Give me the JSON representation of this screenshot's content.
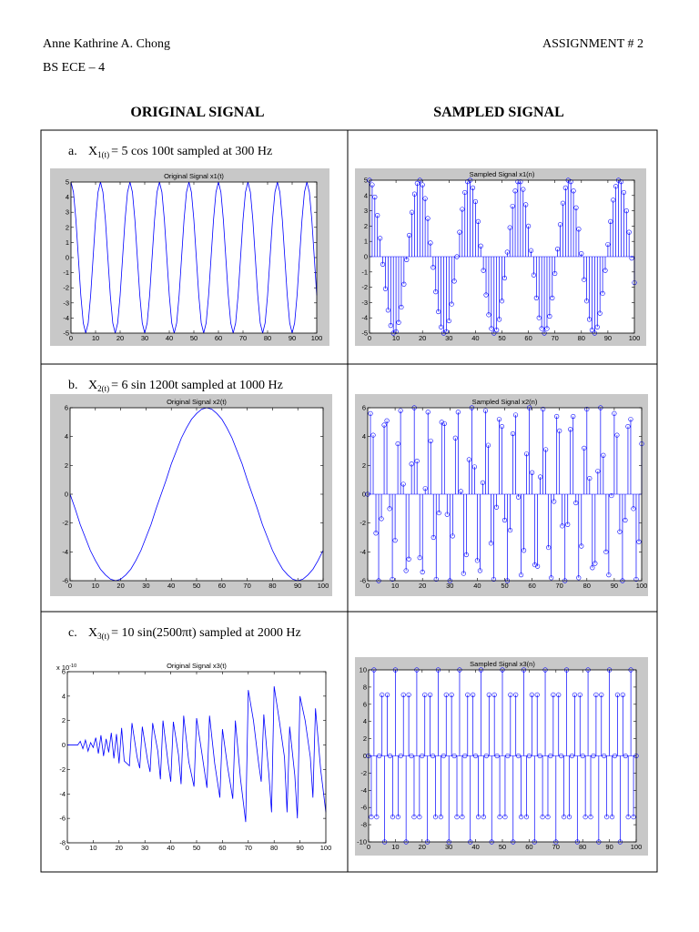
{
  "header": {
    "name": "Anne Kathrine A. Chong",
    "assignment": "ASSIGNMENT # 2",
    "course": "BS ECE – 4"
  },
  "columns": [
    "ORIGINAL SIGNAL",
    "SAMPLED SIGNAL"
  ],
  "rows": [
    {
      "label": "a.",
      "symbol": "X",
      "subscript": "1(t)",
      "text": "= 5 cos 100t sampled at 300 Hz"
    },
    {
      "label": "b.",
      "symbol": "X",
      "subscript": "2(t)",
      "text": "= 6 sin 1200t sampled at 1000 Hz"
    },
    {
      "label": "c.",
      "symbol": "X",
      "subscript": "3(t)",
      "text": "= 10 sin(2500πt) sampled at 2000 Hz"
    }
  ],
  "chart_data": [
    {
      "type": "line",
      "title": "Original Signal x1(t)",
      "color": "#0000ff",
      "background": "#c8c8c8",
      "x": [
        0,
        1,
        2,
        3,
        4,
        5,
        6,
        7,
        8,
        9,
        10,
        11,
        12,
        13,
        14,
        15,
        16,
        17,
        18,
        19,
        20,
        21,
        22,
        23,
        24,
        25,
        26,
        27,
        28,
        29,
        30,
        31,
        32,
        33,
        34,
        35,
        36,
        37,
        38,
        39,
        40,
        41,
        42,
        43,
        44,
        45,
        46,
        47,
        48,
        49,
        50,
        51,
        52,
        53,
        54,
        55,
        56,
        57,
        58,
        59,
        60,
        61,
        62,
        63,
        64,
        65,
        66,
        67,
        68,
        69,
        70,
        71,
        72,
        73,
        74,
        75,
        76,
        77,
        78,
        79,
        80,
        81,
        82,
        83,
        84,
        85,
        86,
        87,
        88,
        89,
        90,
        91,
        92,
        93,
        94,
        95,
        96,
        97,
        98,
        99,
        100
      ],
      "values": [
        5,
        4.33,
        2.5,
        0,
        -2.5,
        -4.33,
        -5,
        -4.33,
        -2.5,
        0,
        2.5,
        4.33,
        5,
        4.33,
        2.5,
        0,
        -2.5,
        -4.33,
        -5,
        -4.33,
        -2.5,
        0,
        2.5,
        4.33,
        5,
        4.33,
        2.5,
        0,
        -2.5,
        -4.33,
        -5,
        -4.33,
        -2.5,
        0,
        2.5,
        4.33,
        5,
        4.33,
        2.5,
        0,
        -2.5,
        -4.33,
        -5,
        -4.33,
        -2.5,
        0,
        2.5,
        4.33,
        5,
        4.33,
        2.5,
        0,
        -2.5,
        -4.33,
        -5,
        -4.33,
        -2.5,
        0,
        2.5,
        4.33,
        5,
        4.33,
        2.5,
        0,
        -2.5,
        -4.33,
        -5,
        -4.33,
        -2.5,
        0,
        2.5,
        4.33,
        5,
        4.33,
        2.5,
        0,
        -2.5,
        -4.33,
        -5,
        -4.33,
        -2.5,
        0,
        2.5,
        4.33,
        5,
        4.33,
        2.5,
        0,
        -2.5,
        -4.33,
        -5,
        -4.33,
        -2.5,
        0,
        2.5,
        4.33,
        5,
        4.33,
        2.5,
        0,
        -2.5
      ],
      "xlim": [
        0,
        100
      ],
      "ylim": [
        -5,
        5
      ],
      "xticks": [
        0,
        10,
        20,
        30,
        40,
        50,
        60,
        70,
        80,
        90,
        100
      ],
      "yticks": [
        -5,
        -4,
        -3,
        -2,
        -1,
        0,
        1,
        2,
        3,
        4,
        5
      ]
    },
    {
      "type": "stem",
      "title": "Sampled Signal x1(n)",
      "color": "#0000ff",
      "background": "#c8c8c8",
      "x": [
        0,
        1,
        2,
        3,
        4,
        5,
        6,
        7,
        8,
        9,
        10,
        11,
        12,
        13,
        14,
        15,
        16,
        17,
        18,
        19,
        20,
        21,
        22,
        23,
        24,
        25,
        26,
        27,
        28,
        29,
        30,
        31,
        32,
        33,
        34,
        35,
        36,
        37,
        38,
        39,
        40,
        41,
        42,
        43,
        44,
        45,
        46,
        47,
        48,
        49,
        50,
        51,
        52,
        53,
        54,
        55,
        56,
        57,
        58,
        59,
        60,
        61,
        62,
        63,
        64,
        65,
        66,
        67,
        68,
        69,
        70,
        71,
        72,
        73,
        74,
        75,
        76,
        77,
        78,
        79,
        80,
        81,
        82,
        83,
        84,
        85,
        86,
        87,
        88,
        89,
        90,
        91,
        92,
        93,
        94,
        95,
        96,
        97,
        98,
        99,
        100
      ],
      "values": [
        5,
        4.7,
        3.9,
        2.7,
        1.2,
        -0.5,
        -2.1,
        -3.5,
        -4.5,
        -5,
        -4.9,
        -4.3,
        -3.3,
        -1.8,
        -0.2,
        1.4,
        2.9,
        4.1,
        4.8,
        5,
        4.7,
        3.8,
        2.5,
        0.9,
        -0.7,
        -2.3,
        -3.6,
        -4.6,
        -5,
        -4.9,
        -4.2,
        -3.1,
        -1.6,
        0,
        1.6,
        3.1,
        4.2,
        4.9,
        5,
        4.5,
        3.6,
        2.3,
        0.7,
        -0.9,
        -2.5,
        -3.8,
        -4.7,
        -5,
        -4.8,
        -4.1,
        -2.9,
        -1.4,
        0.3,
        1.9,
        3.3,
        4.3,
        4.9,
        4.9,
        4.4,
        3.4,
        2,
        0.4,
        -1.2,
        -2.7,
        -4,
        -4.7,
        -5,
        -4.7,
        -3.9,
        -2.7,
        -1.1,
        0.5,
        2.1,
        3.5,
        4.5,
        5,
        4.9,
        4.3,
        3.2,
        1.8,
        0.2,
        -1.5,
        -2.9,
        -4.1,
        -4.8,
        -5,
        -4.6,
        -3.7,
        -2.4,
        -0.9,
        0.8,
        2.3,
        3.7,
        4.6,
        5,
        4.9,
        4.2,
        3,
        1.6,
        -0.1,
        -1.7
      ],
      "xlim": [
        0,
        100
      ],
      "ylim": [
        -5,
        5
      ],
      "xticks": [
        0,
        10,
        20,
        30,
        40,
        50,
        60,
        70,
        80,
        90,
        100
      ],
      "yticks": [
        -5,
        -4,
        -3,
        -2,
        -1,
        0,
        1,
        2,
        3,
        4,
        5
      ]
    },
    {
      "type": "line",
      "title": "Original Signal x2(t)",
      "color": "#0000ff",
      "background": "#c8c8c8",
      "x": [
        0,
        2,
        4,
        6,
        8,
        10,
        12,
        14,
        16,
        18,
        20,
        22,
        24,
        26,
        28,
        30,
        32,
        34,
        36,
        38,
        40,
        42,
        44,
        46,
        48,
        50,
        52,
        54,
        56,
        58,
        60,
        62,
        64,
        66,
        68,
        70,
        72,
        74,
        76,
        78,
        80,
        82,
        84,
        86,
        88,
        90,
        92,
        94,
        96,
        98,
        100
      ],
      "values": [
        0,
        -1,
        -2.1,
        -3,
        -3.9,
        -4.6,
        -5.2,
        -5.6,
        -5.9,
        -6,
        -5.9,
        -5.6,
        -5.2,
        -4.6,
        -3.9,
        -3,
        -2.1,
        -1,
        0,
        1,
        2.1,
        3,
        3.9,
        4.6,
        5.2,
        5.6,
        5.9,
        6,
        5.9,
        5.6,
        5.2,
        4.6,
        3.9,
        3,
        2.1,
        1,
        0,
        -1,
        -2.1,
        -3,
        -3.9,
        -4.6,
        -5.2,
        -5.6,
        -5.9,
        -6,
        -5.9,
        -5.6,
        -5.2,
        -4.6,
        -3.9
      ],
      "xlim": [
        0,
        100
      ],
      "ylim": [
        -6,
        6
      ],
      "xticks": [
        0,
        10,
        20,
        30,
        40,
        50,
        60,
        70,
        80,
        90,
        100
      ],
      "yticks": [
        -6,
        -4,
        -2,
        0,
        2,
        4,
        6
      ]
    },
    {
      "type": "stem",
      "title": "Sampled Signal x2(n)",
      "color": "#0000ff",
      "background": "#c8c8c8",
      "x": [
        0,
        1,
        2,
        3,
        4,
        5,
        6,
        7,
        8,
        9,
        10,
        11,
        12,
        13,
        14,
        15,
        16,
        17,
        18,
        19,
        20,
        21,
        22,
        23,
        24,
        25,
        26,
        27,
        28,
        29,
        30,
        31,
        32,
        33,
        34,
        35,
        36,
        37,
        38,
        39,
        40,
        41,
        42,
        43,
        44,
        45,
        46,
        47,
        48,
        49,
        50,
        51,
        52,
        53,
        54,
        55,
        56,
        57,
        58,
        59,
        60,
        61,
        62,
        63,
        64,
        65,
        66,
        67,
        68,
        69,
        70,
        71,
        72,
        73,
        74,
        75,
        76,
        77,
        78,
        79,
        80,
        81,
        82,
        83,
        84,
        85,
        86,
        87,
        88,
        89,
        90,
        91,
        92,
        93,
        94,
        95,
        96,
        97,
        98,
        99,
        100
      ],
      "values": [
        0,
        5.6,
        4.1,
        -2.7,
        -6,
        -1.7,
        4.8,
        5.1,
        -1,
        -5.9,
        -3.2,
        3.5,
        5.8,
        0.7,
        -5.3,
        -4.5,
        2.1,
        6,
        2.3,
        -4.4,
        -5.4,
        0.4,
        5.7,
        3.7,
        -3,
        -5.9,
        -1.3,
        5,
        4.9,
        -1.4,
        -6,
        -2.9,
        3.9,
        5.7,
        0.2,
        -5.5,
        -4.2,
        2.4,
        6,
        1.9,
        -4.6,
        -5.3,
        0.8,
        5.8,
        3.4,
        -3.4,
        -5.9,
        -0.9,
        5.2,
        4.7,
        -1.8,
        -6,
        -2.5,
        4.2,
        5.5,
        -0.2,
        -5.6,
        -3.9,
        2.8,
        6,
        1.5,
        -4.9,
        -5,
        1.2,
        5.9,
        3.1,
        -3.7,
        -5.8,
        -0.5,
        5.4,
        4.4,
        -2.2,
        -6,
        -2.1,
        4.5,
        5.4,
        -0.6,
        -5.8,
        -3.6,
        3.2,
        5.9,
        1.1,
        -5.1,
        -4.8,
        1.6,
        6,
        2.7,
        -4,
        -5.6,
        -0.1,
        5.6,
        4.1,
        -2.6,
        -6,
        -1.8,
        4.7,
        5.2,
        -1,
        -5.9,
        -3.3,
        3.5
      ],
      "xlim": [
        0,
        100
      ],
      "ylim": [
        -6,
        6
      ],
      "xticks": [
        0,
        10,
        20,
        30,
        40,
        50,
        60,
        70,
        80,
        90,
        100
      ],
      "yticks": [
        -6,
        -4,
        -2,
        0,
        2,
        4,
        6
      ]
    },
    {
      "type": "line",
      "title": "Original Signal x3(t)",
      "color": "#0000ff",
      "background": "#ffffff",
      "y_multiplier": "x 10",
      "y_multiplier_power": "-10",
      "x": [
        0,
        4,
        5,
        6,
        7,
        8,
        9,
        10,
        11,
        12,
        13,
        14,
        15,
        16,
        17,
        18,
        19,
        20,
        21,
        22,
        24,
        25,
        27,
        28,
        29,
        31,
        32,
        33,
        35,
        36,
        37,
        39,
        40,
        41,
        43,
        44,
        45,
        47,
        49,
        50,
        52,
        54,
        55,
        57,
        59,
        60,
        62,
        64,
        65,
        67,
        69,
        70,
        72,
        74,
        75,
        76,
        78,
        79,
        80,
        82,
        84,
        85,
        86,
        88,
        89,
        90,
        92,
        94,
        95,
        96,
        98,
        100
      ],
      "values": [
        0,
        0,
        0.3,
        -0.3,
        0.4,
        -0.5,
        0.2,
        -0.2,
        0.6,
        -0.7,
        0.8,
        -0.9,
        0.5,
        -0.6,
        1,
        -1.1,
        0.9,
        -1.5,
        1.4,
        -1.3,
        -1.7,
        1.8,
        -1,
        -1.9,
        1.5,
        -1.2,
        -2.2,
        1.8,
        -0.5,
        -2.8,
        2,
        -1.5,
        -3,
        1.9,
        -0.8,
        -3.2,
        2.4,
        -1.4,
        -3.4,
        2.2,
        -0.6,
        -3.5,
        2.4,
        -1.5,
        -4.3,
        1.3,
        -1.8,
        -4.4,
        2,
        -2.8,
        -6.3,
        4.5,
        2,
        -1.5,
        -3,
        2.5,
        -2.5,
        -5.5,
        4.8,
        2,
        -1,
        -5.5,
        1.5,
        -2.5,
        -6,
        4,
        2,
        -1,
        -4.3,
        3,
        -2,
        -5.5
      ],
      "xlim": [
        0,
        100
      ],
      "ylim": [
        -8,
        6
      ],
      "xticks": [
        0,
        10,
        20,
        30,
        40,
        50,
        60,
        70,
        80,
        90,
        100
      ],
      "yticks": [
        -8,
        -6,
        -4,
        -2,
        0,
        2,
        4,
        6
      ]
    },
    {
      "type": "stem",
      "title": "Sampled Signal x3(n)",
      "color": "#0000ff",
      "background": "#c8c8c8",
      "x": [
        0,
        1,
        2,
        3,
        4,
        5,
        6,
        7,
        8,
        9,
        10,
        11,
        12,
        13,
        14,
        15,
        16,
        17,
        18,
        19,
        20,
        21,
        22,
        23,
        24,
        25,
        26,
        27,
        28,
        29,
        30,
        31,
        32,
        33,
        34,
        35,
        36,
        37,
        38,
        39,
        40,
        41,
        42,
        43,
        44,
        45,
        46,
        47,
        48,
        49,
        50,
        51,
        52,
        53,
        54,
        55,
        56,
        57,
        58,
        59,
        60,
        61,
        62,
        63,
        64,
        65,
        66,
        67,
        68,
        69,
        70,
        71,
        72,
        73,
        74,
        75,
        76,
        77,
        78,
        79,
        80,
        81,
        82,
        83,
        84,
        85,
        86,
        87,
        88,
        89,
        90,
        91,
        92,
        93,
        94,
        95,
        96,
        97,
        98,
        99,
        100
      ],
      "values": [
        0,
        -7.1,
        10,
        -7.1,
        0,
        7.1,
        -10,
        7.1,
        0,
        -7.1,
        10,
        -7.1,
        0,
        7.1,
        -10,
        7.1,
        0,
        -7.1,
        10,
        -7.1,
        0,
        7.1,
        -10,
        7.1,
        0,
        -7.1,
        10,
        -7.1,
        0,
        7.1,
        -10,
        7.1,
        0,
        -7.1,
        10,
        -7.1,
        0,
        7.1,
        -10,
        7.1,
        0,
        -7.1,
        10,
        -7.1,
        0,
        7.1,
        -10,
        7.1,
        0,
        -7.1,
        10,
        -7.1,
        0,
        7.1,
        -10,
        7.1,
        0,
        -7.1,
        10,
        -7.1,
        0,
        7.1,
        -10,
        7.1,
        0,
        -7.1,
        10,
        -7.1,
        0,
        7.1,
        -10,
        7.1,
        0,
        -7.1,
        10,
        -7.1,
        0,
        7.1,
        -10,
        7.1,
        0,
        -7.1,
        10,
        -7.1,
        0,
        7.1,
        -10,
        7.1,
        0,
        -7.1,
        10,
        -7.1,
        0,
        7.1,
        -10,
        7.1,
        0,
        -7.1,
        10,
        -7.1,
        0
      ],
      "xlim": [
        0,
        100
      ],
      "ylim": [
        -10,
        10
      ],
      "xticks": [
        0,
        10,
        20,
        30,
        40,
        50,
        60,
        70,
        80,
        90,
        100
      ],
      "yticks": [
        -10,
        -8,
        -6,
        -4,
        -2,
        0,
        2,
        4,
        6,
        8,
        10
      ]
    }
  ]
}
